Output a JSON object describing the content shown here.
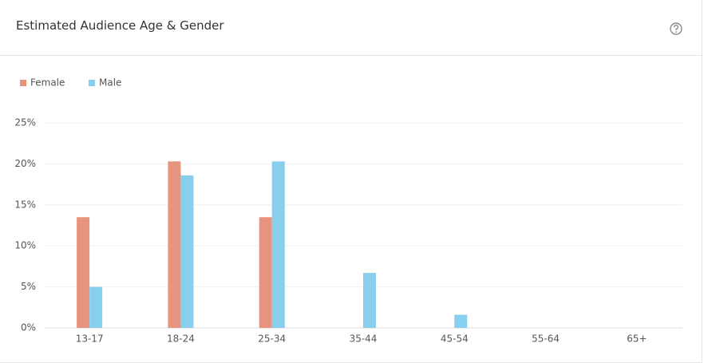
{
  "chart_data": {
    "type": "bar",
    "title": "Estimated Audience Age & Gender",
    "categories": [
      "13-17",
      "18-24",
      "25-34",
      "35-44",
      "45-54",
      "55-64",
      "65+"
    ],
    "series": [
      {
        "name": "Female",
        "color": "#e8937d",
        "values": [
          13.5,
          20.3,
          13.5,
          0,
          0,
          0,
          0
        ]
      },
      {
        "name": "Male",
        "color": "#87cfec",
        "values": [
          5.0,
          18.6,
          20.3,
          6.7,
          1.6,
          0,
          0
        ]
      }
    ],
    "ylim": [
      0,
      25
    ],
    "yticks": [
      {
        "value": 0,
        "label": "0%"
      },
      {
        "value": 5,
        "label": "5%"
      },
      {
        "value": 10,
        "label": "10%"
      },
      {
        "value": 15,
        "label": "15%"
      },
      {
        "value": 20,
        "label": "20%"
      },
      {
        "value": 25,
        "label": "25%"
      }
    ],
    "grid": true,
    "legend": "top-left"
  }
}
